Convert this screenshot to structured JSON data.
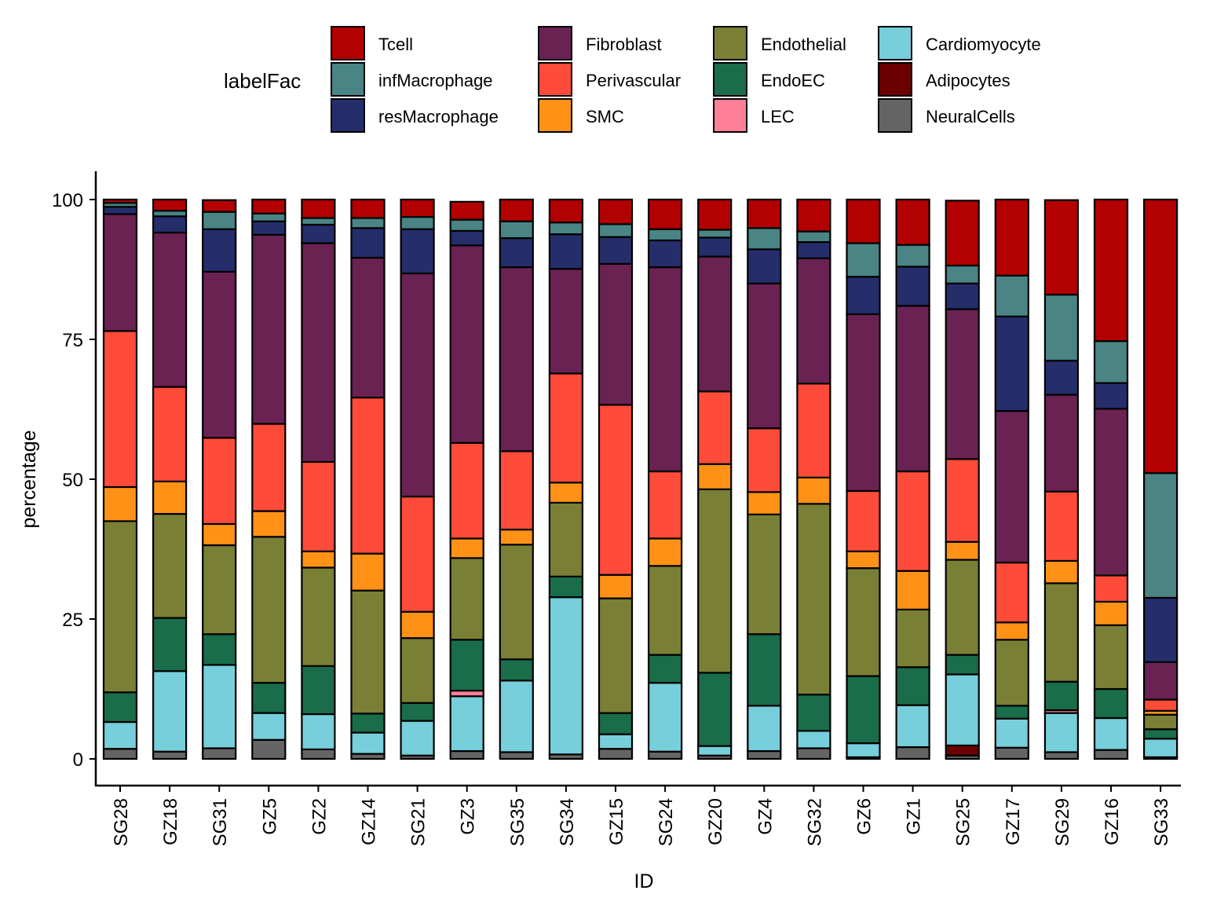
{
  "chart_data": {
    "type": "bar",
    "stacked": true,
    "title": "",
    "xlabel": "ID",
    "ylabel": "percentage",
    "ylim": [
      0,
      100
    ],
    "yticks": [
      0,
      25,
      50,
      75,
      100
    ],
    "grid": false,
    "legend": {
      "title": "labelFac",
      "position": "top",
      "entries": [
        {
          "name": "Tcell",
          "color": "#B30000"
        },
        {
          "name": "infMacrophage",
          "color": "#4A8484"
        },
        {
          "name": "resMacrophage",
          "color": "#252E6B"
        },
        {
          "name": "Fibroblast",
          "color": "#6A2253"
        },
        {
          "name": "Perivascular",
          "color": "#FF4B3A"
        },
        {
          "name": "SMC",
          "color": "#FF9216"
        },
        {
          "name": "Endothelial",
          "color": "#7A7F36"
        },
        {
          "name": "EndoEC",
          "color": "#196D4A"
        },
        {
          "name": "LEC",
          "color": "#FF8099"
        },
        {
          "name": "Cardiomyocyte",
          "color": "#76CFDA"
        },
        {
          "name": "Adipocytes",
          "color": "#6B0000"
        },
        {
          "name": "NeuralCells",
          "color": "#646464"
        }
      ]
    },
    "stack_order_bottom_to_top": [
      "NeuralCells",
      "Adipocytes",
      "Cardiomyocyte",
      "LEC",
      "EndoEC",
      "Endothelial",
      "SMC",
      "Perivascular",
      "Fibroblast",
      "resMacrophage",
      "infMacrophage",
      "Tcell"
    ],
    "categories": [
      "SG28",
      "GZ18",
      "SG31",
      "GZ5",
      "GZ2",
      "GZ14",
      "SG21",
      "GZ3",
      "SG35",
      "SG34",
      "GZ15",
      "SG24",
      "GZ20",
      "GZ4",
      "SG32",
      "GZ6",
      "GZ1",
      "SG25",
      "GZ17",
      "SG29",
      "GZ16",
      "SG33"
    ],
    "series": [
      {
        "name": "NeuralCells",
        "values": [
          1.8,
          1.3,
          1.9,
          3.4,
          1.7,
          0.9,
          0.6,
          1.4,
          1.2,
          0.8,
          1.8,
          1.3,
          0.6,
          1.4,
          1.9,
          0.3,
          2.1,
          0.6,
          2.0,
          1.2,
          1.6,
          0.3
        ]
      },
      {
        "name": "Adipocytes",
        "values": [
          0,
          0,
          0,
          0,
          0,
          0,
          0,
          0,
          0,
          0,
          0,
          0,
          0,
          0,
          0,
          0,
          0,
          1.8,
          0,
          0,
          0,
          0
        ]
      },
      {
        "name": "Cardiomyocyte",
        "values": [
          4.8,
          14.4,
          14.9,
          4.8,
          6.3,
          3.8,
          6.2,
          9.8,
          12.8,
          28.1,
          2.6,
          12.3,
          1.7,
          8.1,
          3.1,
          2.5,
          7.5,
          12.7,
          5.2,
          7.0,
          5.7,
          3.3
        ]
      },
      {
        "name": "LEC",
        "values": [
          0,
          0,
          0,
          0,
          0,
          0,
          0,
          1.0,
          0,
          0,
          0,
          0,
          0,
          0,
          0,
          0,
          0,
          0,
          0,
          0.5,
          0,
          0
        ]
      },
      {
        "name": "EndoEC",
        "values": [
          5.3,
          9.5,
          5.5,
          5.4,
          8.6,
          3.4,
          3.2,
          9.1,
          3.8,
          3.7,
          3.8,
          5.0,
          13.1,
          12.8,
          6.5,
          12.0,
          6.8,
          3.5,
          2.3,
          5.1,
          5.2,
          1.7
        ]
      },
      {
        "name": "Endothelial",
        "values": [
          30.6,
          18.6,
          15.9,
          26.1,
          17.6,
          22.0,
          11.6,
          14.6,
          20.5,
          13.2,
          20.5,
          15.9,
          32.8,
          21.4,
          34.1,
          19.3,
          10.3,
          17.0,
          11.8,
          17.6,
          11.4,
          2.6
        ]
      },
      {
        "name": "SMC",
        "values": [
          6.1,
          5.8,
          3.8,
          4.6,
          2.9,
          6.6,
          4.7,
          3.5,
          2.7,
          3.6,
          4.2,
          4.9,
          4.5,
          4.0,
          4.7,
          3.0,
          6.9,
          3.2,
          3.1,
          4.0,
          4.2,
          0.7
        ]
      },
      {
        "name": "Perivascular",
        "values": [
          27.9,
          16.9,
          15.4,
          15.6,
          16.0,
          27.9,
          20.6,
          17.1,
          14.0,
          19.5,
          30.4,
          12.0,
          13.0,
          11.4,
          16.8,
          10.8,
          17.8,
          14.8,
          10.7,
          12.4,
          4.7,
          2.0
        ]
      },
      {
        "name": "Fibroblast",
        "values": [
          20.9,
          27.6,
          29.7,
          33.8,
          39.1,
          25.0,
          39.9,
          35.3,
          32.9,
          18.7,
          25.2,
          36.5,
          24.1,
          25.9,
          22.4,
          31.6,
          29.6,
          26.8,
          27.1,
          17.3,
          29.8,
          6.7
        ]
      },
      {
        "name": "resMacrophage",
        "values": [
          1.3,
          2.9,
          7.6,
          2.4,
          3.3,
          5.3,
          7.9,
          2.6,
          5.2,
          6.2,
          4.8,
          4.8,
          3.4,
          6.1,
          2.9,
          6.7,
          7.0,
          4.6,
          16.9,
          6.1,
          4.6,
          11.5
        ]
      },
      {
        "name": "infMacrophage",
        "values": [
          0.7,
          1.0,
          3.1,
          1.4,
          1.2,
          1.8,
          2.2,
          2.0,
          3.0,
          2.1,
          2.3,
          2.0,
          1.4,
          3.8,
          1.9,
          6.0,
          3.9,
          3.2,
          7.3,
          11.8,
          7.5,
          22.3
        ]
      },
      {
        "name": "Tcell",
        "values": [
          0.6,
          2.0,
          2.1,
          2.5,
          3.3,
          3.3,
          3.1,
          3.2,
          3.9,
          4.1,
          4.4,
          5.3,
          5.4,
          5.1,
          5.7,
          7.8,
          8.1,
          11.6,
          13.6,
          16.9,
          25.3,
          48.9
        ]
      }
    ]
  }
}
